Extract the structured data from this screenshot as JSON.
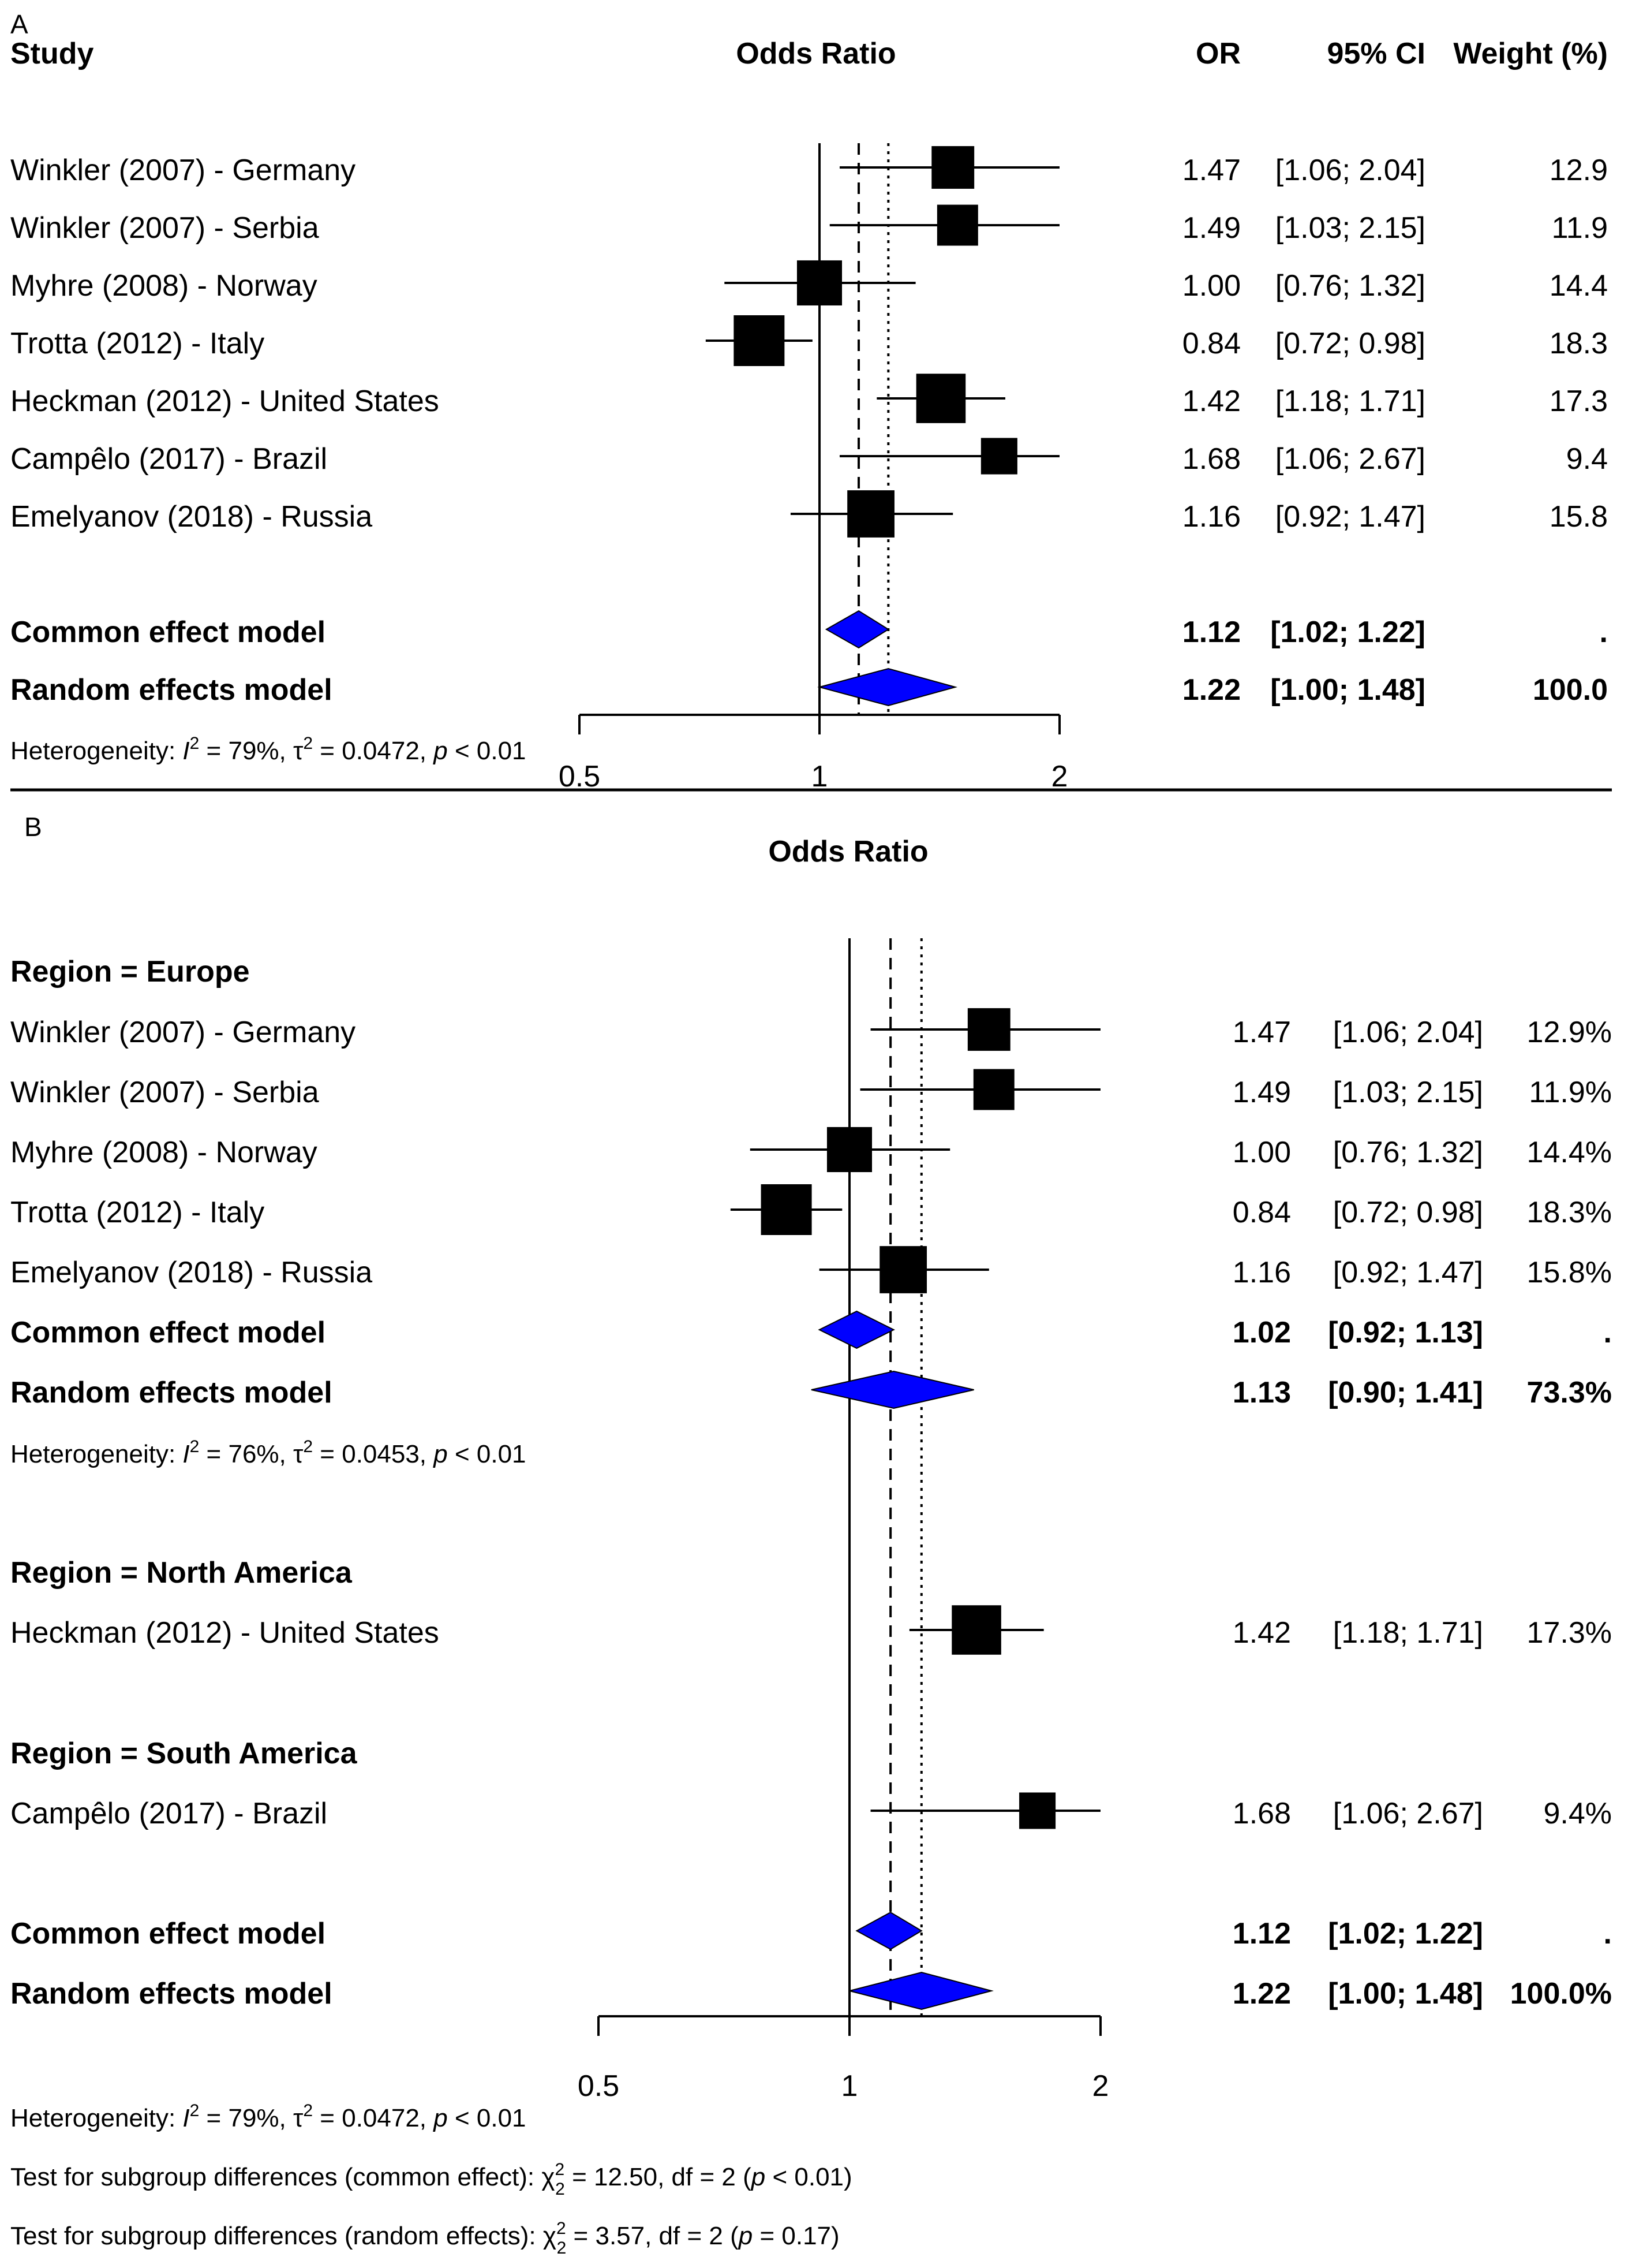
{
  "panel_a": {
    "letter": "A",
    "headers": {
      "study": "Study",
      "axis_title": "Odds Ratio",
      "or": "OR",
      "ci": "95% CI",
      "weight": "Weight (%)"
    },
    "axis_ticks": [
      {
        "value": 0.5,
        "label": "0.5"
      },
      {
        "value": 1,
        "label": "1"
      },
      {
        "value": 2,
        "label": "2"
      }
    ],
    "heterogeneity": {
      "prefix": "Heterogeneity: ",
      "I2": "I",
      "sup2": "2",
      "rest1": " = 79%, ",
      "tau": "τ",
      "rest2": " = 0.0472, ",
      "p": "p",
      "rest3": " < 0.01"
    }
  },
  "panel_b": {
    "letter": "B",
    "axis_title": "Odds Ratio",
    "axis_ticks": [
      {
        "value": 0.5,
        "label": "0.5"
      },
      {
        "value": 1,
        "label": "1"
      },
      {
        "value": 2,
        "label": "2"
      }
    ],
    "groups": {
      "europe": "Region = Europe",
      "north_america": "Region = North America",
      "south_america": "Region = South America"
    },
    "europe_heterogeneity": {
      "prefix": "Heterogeneity: ",
      "I2": "I",
      "sup2": "2",
      "rest1": " = 76%, ",
      "tau": "τ",
      "rest2": " = 0.0453, ",
      "p": "p",
      "rest3": " < 0.01"
    },
    "overall_heterogeneity": {
      "prefix": "Heterogeneity: ",
      "I2": "I",
      "sup2": "2",
      "rest1": " = 79%, ",
      "tau": "τ",
      "rest2": " = 0.0472, ",
      "p": "p",
      "rest3": " < 0.01"
    },
    "test_common": {
      "prefix": "Test for subgroup differences (common effect): ",
      "chi": "χ",
      "sub": "2",
      "sup": "2",
      "rest1": " = 12.50, df = 2 (",
      "p": "p",
      "rest2": " < 0.01)"
    },
    "test_random": {
      "prefix": "Test for subgroup differences (random effects): ",
      "chi": "χ",
      "sub": "2",
      "sup": "2",
      "rest1": " = 3.57, df = 2 (",
      "p": "p",
      "rest2": " = 0.17)"
    }
  },
  "chart_data": [
    {
      "type": "forest",
      "panel": "A",
      "scale": "log",
      "xlim": [
        0.5,
        2
      ],
      "reference_line": 1,
      "common_effect_line": 1.12,
      "random_effects_line": 1.22,
      "studies": [
        {
          "label": "Winkler (2007) - Germany",
          "or": 1.47,
          "lo": 1.06,
          "hi": 2.04,
          "or_text": "1.47",
          "ci_text": "[1.06; 2.04]",
          "weight": 12.9,
          "weight_text": "12.9"
        },
        {
          "label": "Winkler (2007) - Serbia",
          "or": 1.49,
          "lo": 1.03,
          "hi": 2.15,
          "or_text": "1.49",
          "ci_text": "[1.03; 2.15]",
          "weight": 11.9,
          "weight_text": "11.9"
        },
        {
          "label": "Myhre (2008) - Norway",
          "or": 1.0,
          "lo": 0.76,
          "hi": 1.32,
          "or_text": "1.00",
          "ci_text": "[0.76; 1.32]",
          "weight": 14.4,
          "weight_text": "14.4"
        },
        {
          "label": "Trotta (2012) - Italy",
          "or": 0.84,
          "lo": 0.72,
          "hi": 0.98,
          "or_text": "0.84",
          "ci_text": "[0.72; 0.98]",
          "weight": 18.3,
          "weight_text": "18.3"
        },
        {
          "label": "Heckman (2012) - United States",
          "or": 1.42,
          "lo": 1.18,
          "hi": 1.71,
          "or_text": "1.42",
          "ci_text": "[1.18; 1.71]",
          "weight": 17.3,
          "weight_text": "17.3"
        },
        {
          "label": "Campêlo (2017) - Brazil",
          "or": 1.68,
          "lo": 1.06,
          "hi": 2.67,
          "or_text": "1.68",
          "ci_text": "[1.06; 2.67]",
          "weight": 9.4,
          "weight_text": "9.4"
        },
        {
          "label": "Emelyanov (2018) - Russia",
          "or": 1.16,
          "lo": 0.92,
          "hi": 1.47,
          "or_text": "1.16",
          "ci_text": "[0.92; 1.47]",
          "weight": 15.8,
          "weight_text": "15.8"
        }
      ],
      "summaries": [
        {
          "label": "Common effect model",
          "or": 1.12,
          "lo": 1.02,
          "hi": 1.22,
          "or_text": "1.12",
          "ci_text": "[1.02; 1.22]",
          "weight_text": "."
        },
        {
          "label": "Random effects model",
          "or": 1.22,
          "lo": 1.0,
          "hi": 1.48,
          "or_text": "1.22",
          "ci_text": "[1.00; 1.48]",
          "weight_text": "100.0"
        }
      ]
    },
    {
      "type": "forest",
      "panel": "B",
      "scale": "log",
      "xlim": [
        0.5,
        2
      ],
      "reference_line": 1,
      "common_effect_line": 1.12,
      "random_effects_line": 1.22,
      "subgroups": [
        {
          "name": "Region = Europe",
          "studies": [
            {
              "label": "Winkler (2007) - Germany",
              "or": 1.47,
              "lo": 1.06,
              "hi": 2.04,
              "or_text": "1.47",
              "ci_text": "[1.06; 2.04]",
              "weight": 12.9,
              "weight_text": "12.9%"
            },
            {
              "label": "Winkler (2007) - Serbia",
              "or": 1.49,
              "lo": 1.03,
              "hi": 2.15,
              "or_text": "1.49",
              "ci_text": "[1.03; 2.15]",
              "weight": 11.9,
              "weight_text": "11.9%"
            },
            {
              "label": "Myhre (2008) - Norway",
              "or": 1.0,
              "lo": 0.76,
              "hi": 1.32,
              "or_text": "1.00",
              "ci_text": "[0.76; 1.32]",
              "weight": 14.4,
              "weight_text": "14.4%"
            },
            {
              "label": "Trotta (2012) - Italy",
              "or": 0.84,
              "lo": 0.72,
              "hi": 0.98,
              "or_text": "0.84",
              "ci_text": "[0.72; 0.98]",
              "weight": 18.3,
              "weight_text": "18.3%"
            },
            {
              "label": "Emelyanov (2018) - Russia",
              "or": 1.16,
              "lo": 0.92,
              "hi": 1.47,
              "or_text": "1.16",
              "ci_text": "[0.92; 1.47]",
              "weight": 15.8,
              "weight_text": "15.8%"
            }
          ],
          "summaries": [
            {
              "label": "Common effect model",
              "or": 1.02,
              "lo": 0.92,
              "hi": 1.13,
              "or_text": "1.02",
              "ci_text": "[0.92; 1.13]",
              "weight_text": "."
            },
            {
              "label": "Random effects model",
              "or": 1.13,
              "lo": 0.9,
              "hi": 1.41,
              "or_text": "1.13",
              "ci_text": "[0.90; 1.41]",
              "weight_text": "73.3%"
            }
          ]
        },
        {
          "name": "Region = North America",
          "studies": [
            {
              "label": "Heckman (2012) - United States",
              "or": 1.42,
              "lo": 1.18,
              "hi": 1.71,
              "or_text": "1.42",
              "ci_text": "[1.18; 1.71]",
              "weight": 17.3,
              "weight_text": "17.3%"
            }
          ]
        },
        {
          "name": "Region = South America",
          "studies": [
            {
              "label": "Campêlo (2017) - Brazil",
              "or": 1.68,
              "lo": 1.06,
              "hi": 2.67,
              "or_text": "1.68",
              "ci_text": "[1.06; 2.67]",
              "weight": 9.4,
              "weight_text": "9.4%"
            }
          ]
        }
      ],
      "summaries": [
        {
          "label": "Common effect model",
          "or": 1.12,
          "lo": 1.02,
          "hi": 1.22,
          "or_text": "1.12",
          "ci_text": "[1.02; 1.22]",
          "weight_text": "."
        },
        {
          "label": "Random effects model",
          "or": 1.22,
          "lo": 1.0,
          "hi": 1.48,
          "or_text": "1.22",
          "ci_text": "[1.00; 1.48]",
          "weight_text": "100.0%"
        }
      ]
    }
  ],
  "colors": {
    "diamond": "#0000ff",
    "square": "#000000",
    "line": "#000000"
  }
}
